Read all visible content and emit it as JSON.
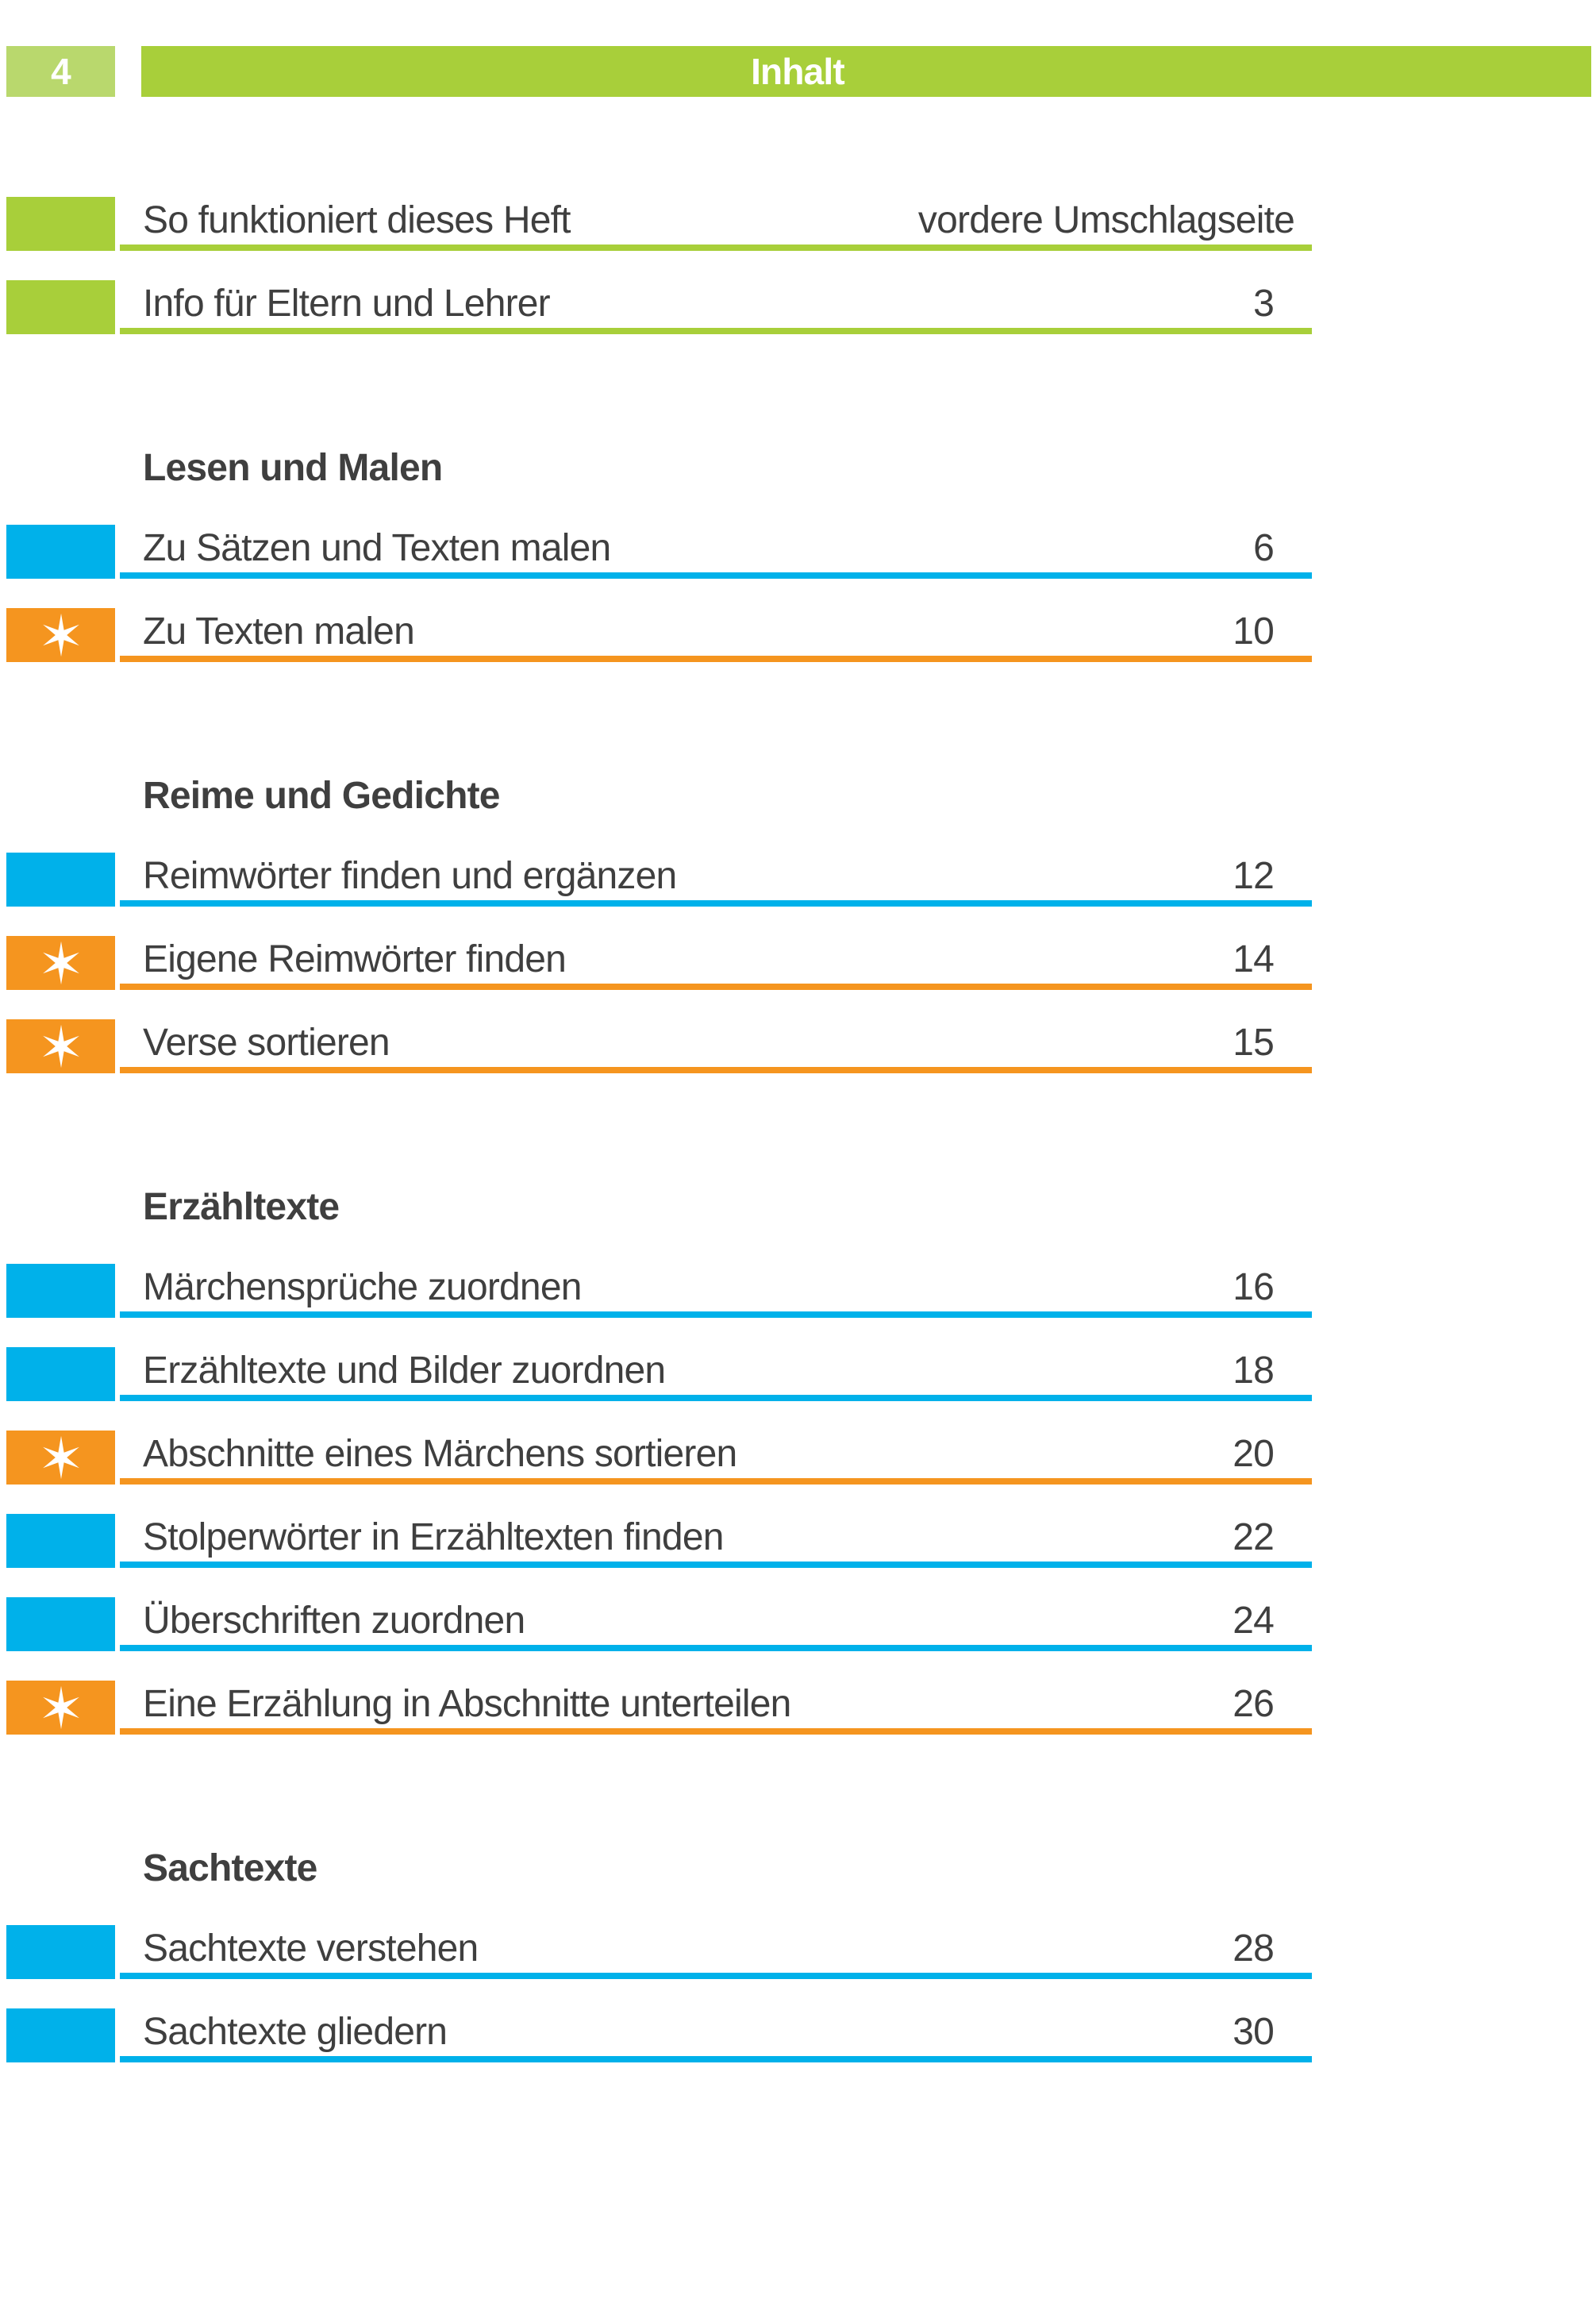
{
  "page": {
    "number": "4",
    "header_title": "Inhalt"
  },
  "colors": {
    "green": "#a8cf3a",
    "green_light": "#b9d86d",
    "blue": "#00b1ea",
    "orange": "#f5951f",
    "text": "#3f3f3f"
  },
  "sections": [
    {
      "title": "",
      "items": [
        {
          "label": "So funktioniert dieses Heft",
          "page": "vordere Umschlagseite",
          "accent": "green",
          "starred": false,
          "page_is_text": true
        },
        {
          "label": "Info für Eltern und Lehrer",
          "page": "3",
          "accent": "green",
          "starred": false,
          "page_is_text": false
        }
      ]
    },
    {
      "title": "Lesen und Malen",
      "items": [
        {
          "label": "Zu Sätzen und Texten malen",
          "page": "6",
          "accent": "blue",
          "starred": false,
          "page_is_text": false
        },
        {
          "label": "Zu Texten malen",
          "page": "10",
          "accent": "orange",
          "starred": true,
          "page_is_text": false
        }
      ]
    },
    {
      "title": "Reime und Gedichte",
      "items": [
        {
          "label": "Reimwörter finden und ergänzen",
          "page": "12",
          "accent": "blue",
          "starred": false,
          "page_is_text": false
        },
        {
          "label": "Eigene Reimwörter finden",
          "page": "14",
          "accent": "orange",
          "starred": true,
          "page_is_text": false
        },
        {
          "label": "Verse sortieren",
          "page": "15",
          "accent": "orange",
          "starred": true,
          "page_is_text": false
        }
      ]
    },
    {
      "title": "Erzähltexte",
      "items": [
        {
          "label": "Märchensprüche zuordnen",
          "page": "16",
          "accent": "blue",
          "starred": false,
          "page_is_text": false
        },
        {
          "label": "Erzähltexte und Bilder zuordnen",
          "page": "18",
          "accent": "blue",
          "starred": false,
          "page_is_text": false
        },
        {
          "label": "Abschnitte eines Märchens sortieren",
          "page": "20",
          "accent": "orange",
          "starred": true,
          "page_is_text": false
        },
        {
          "label": "Stolperwörter in Erzähltexten finden",
          "page": "22",
          "accent": "blue",
          "starred": false,
          "page_is_text": false
        },
        {
          "label": "Überschriften zuordnen",
          "page": "24",
          "accent": "blue",
          "starred": false,
          "page_is_text": false
        },
        {
          "label": "Eine Erzählung in Abschnitte unterteilen",
          "page": "26",
          "accent": "orange",
          "starred": true,
          "page_is_text": false
        }
      ]
    },
    {
      "title": "Sachtexte",
      "items": [
        {
          "label": "Sachtexte verstehen",
          "page": "28",
          "accent": "blue",
          "starred": false,
          "page_is_text": false
        },
        {
          "label": "Sachtexte gliedern",
          "page": "30",
          "accent": "blue",
          "starred": false,
          "page_is_text": false
        }
      ]
    }
  ]
}
